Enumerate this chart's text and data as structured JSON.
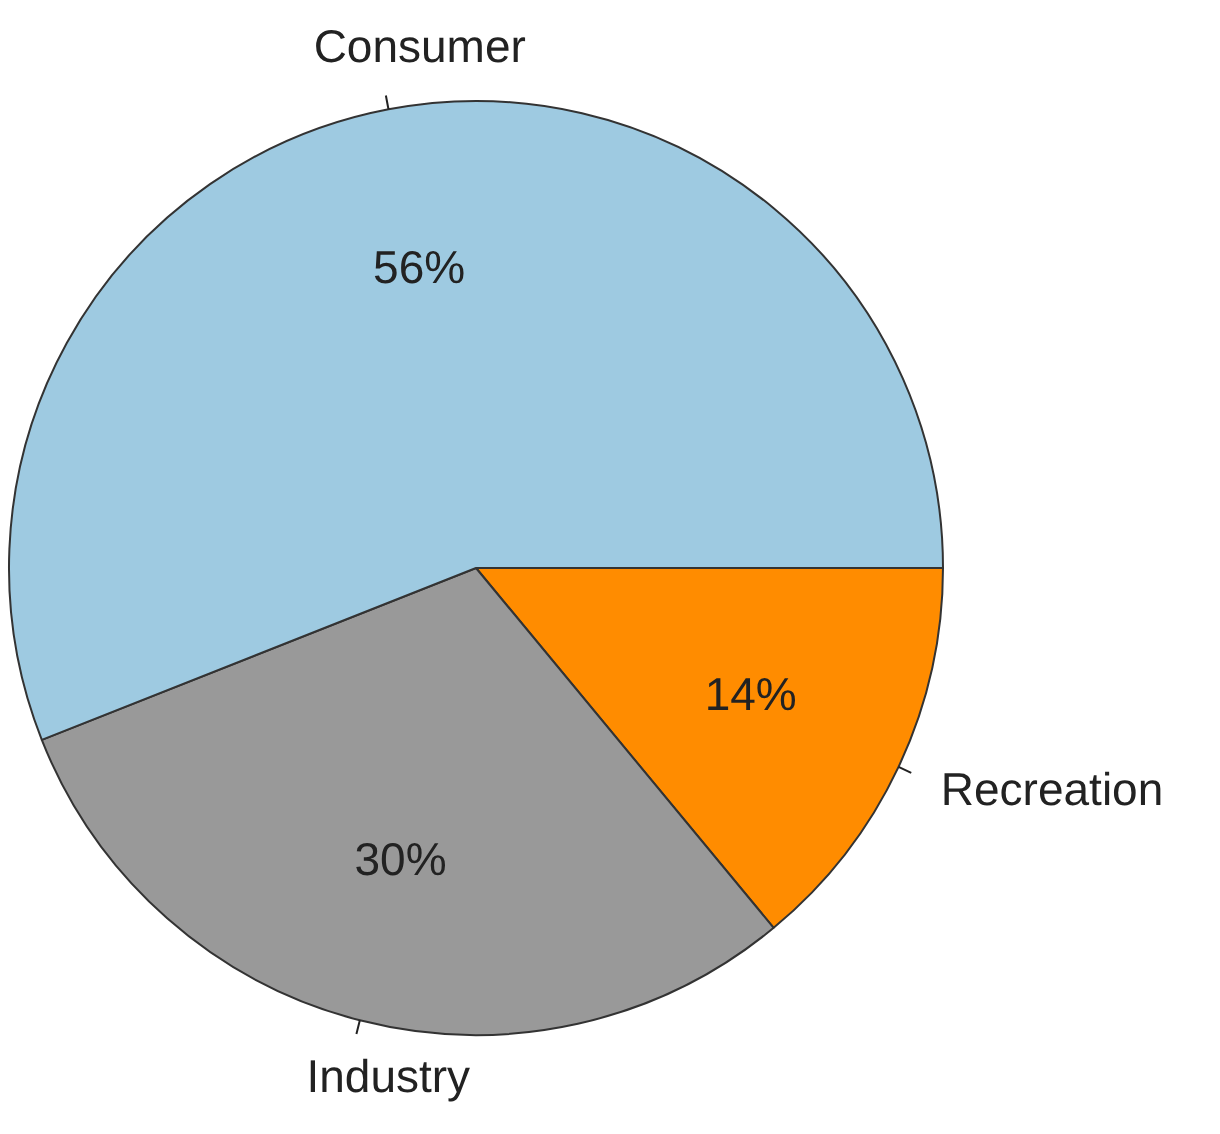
{
  "chart_data": {
    "type": "pie",
    "categories": [
      "Consumer",
      "Industry",
      "Recreation"
    ],
    "values": [
      56,
      30,
      14
    ],
    "colors": [
      "#9ecae1",
      "#999999",
      "#ff8c00"
    ],
    "value_labels": [
      "56%",
      "30%",
      "14%"
    ],
    "legend": false
  }
}
